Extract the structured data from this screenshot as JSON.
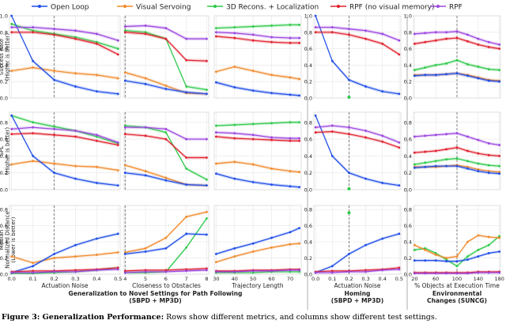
{
  "colors": {
    "open_loop": "#1f4ee8",
    "visual_servoing": "#f08a2c",
    "recons": "#2ec94a",
    "rpf_nomem": "#e0212e",
    "rpf": "#9b45e0",
    "grid": "#e6e6e6",
    "axis": "#444444"
  },
  "caption": {
    "label": "Figure 3: Generalization Performance:",
    "text": " Rows show different metrics, and columns show different test settings."
  },
  "chart_data": {
    "type": "line",
    "legend": {
      "placement": "top",
      "entries": [
        {
          "name": "Open Loop",
          "key": "open_loop"
        },
        {
          "name": "Visual Servoing",
          "key": "visual_servoing"
        },
        {
          "name": "3D Recons. + Localization",
          "key": "recons"
        },
        {
          "name": "RPF (no visual memory)",
          "key": "rpf_nomem"
        },
        {
          "name": "RPF",
          "key": "rpf"
        }
      ]
    },
    "row_labels": [
      [
        "Success Rate",
        "(Higher is better)"
      ],
      [
        "SPL",
        "(Higher is better)"
      ],
      [
        "Median",
        "Normalized Distance",
        "(Lower is better)"
      ]
    ],
    "y_ticks": [
      [
        "0.0",
        "0.2",
        "0.4",
        "0.6",
        "0.8",
        "1.0"
      ],
      [
        "0.0",
        "0.2",
        "0.4",
        "0.6",
        "0.8"
      ],
      [
        "0.0",
        "0.2",
        "0.4",
        "0.6",
        "0.8"
      ]
    ],
    "ylims": [
      [
        0,
        1.0
      ],
      [
        0,
        0.92
      ],
      [
        0,
        0.85
      ]
    ],
    "group_titles": [
      {
        "lines": [
          "Generalization to Novel Settings for Path Following",
          "(SBPD + MP3D)"
        ],
        "cols": [
          0,
          2
        ]
      },
      {
        "lines": [
          "Homing",
          "(SBPD + MP3D)"
        ],
        "cols": [
          3,
          3
        ]
      },
      {
        "lines": [
          "Environmental",
          "Changes (SUNCG)"
        ],
        "cols": [
          4,
          4
        ]
      }
    ],
    "columns": [
      {
        "xlabel": "Actuation Noise",
        "x": [
          0.0,
          0.1,
          0.2,
          0.3,
          0.4,
          0.5
        ],
        "xlim": [
          -0.01,
          0.51
        ],
        "xtick_labels": [
          "0.0",
          "0.1",
          "0.2",
          "0.3",
          "0.4",
          "0.5"
        ],
        "vline": 0.2,
        "rows": [
          {
            "open_loop": [
              1.0,
              0.45,
              0.22,
              0.14,
              0.08,
              0.05
            ],
            "visual_servoing": [
              0.33,
              0.37,
              0.33,
              0.3,
              0.28,
              0.24
            ],
            "recons": [
              0.9,
              0.82,
              0.78,
              0.74,
              0.68,
              0.6
            ],
            "rpf_nomem": [
              0.8,
              0.8,
              0.77,
              0.72,
              0.66,
              0.53
            ],
            "rpf": [
              0.86,
              0.86,
              0.84,
              0.82,
              0.78,
              0.7
            ]
          },
          {
            "open_loop": [
              0.88,
              0.4,
              0.2,
              0.13,
              0.08,
              0.05
            ],
            "visual_servoing": [
              0.3,
              0.34,
              0.31,
              0.28,
              0.27,
              0.23
            ],
            "recons": [
              0.88,
              0.8,
              0.75,
              0.7,
              0.63,
              0.55
            ],
            "rpf_nomem": [
              0.66,
              0.67,
              0.65,
              0.63,
              0.58,
              0.53
            ],
            "rpf": [
              0.72,
              0.74,
              0.72,
              0.7,
              0.65,
              0.56
            ]
          },
          {
            "open_loop": [
              0.02,
              0.1,
              0.25,
              0.36,
              0.44,
              0.5
            ],
            "visual_servoing": [
              0.22,
              0.14,
              0.2,
              0.22,
              0.24,
              0.27
            ],
            "recons": [
              0.01,
              0.01,
              0.02,
              0.03,
              0.05,
              0.08
            ],
            "rpf_nomem": [
              0.03,
              0.04,
              0.04,
              0.05,
              0.06,
              0.08
            ],
            "rpf": [
              0.02,
              0.02,
              0.03,
              0.03,
              0.05,
              0.06
            ]
          }
        ]
      },
      {
        "xlabel": "Closeness to Obstacles",
        "x": [
          4,
          5,
          6,
          7,
          8
        ],
        "xlim": [
          3.95,
          8.1
        ],
        "xtick_labels": [
          "4",
          "5",
          "6",
          "7",
          "8"
        ],
        "vline": 4,
        "rows": [
          {
            "open_loop": [
              0.21,
              0.17,
              0.11,
              0.07,
              0.05
            ],
            "visual_servoing": [
              0.31,
              0.24,
              0.15,
              0.06,
              0.05
            ],
            "recons": [
              0.82,
              0.8,
              0.72,
              0.14,
              0.1
            ],
            "rpf_nomem": [
              0.8,
              0.78,
              0.72,
              0.46,
              0.45
            ],
            "rpf": [
              0.87,
              0.88,
              0.85,
              0.72,
              0.72
            ]
          },
          {
            "open_loop": [
              0.2,
              0.17,
              0.11,
              0.06,
              0.05
            ],
            "visual_servoing": [
              0.29,
              0.22,
              0.14,
              0.06,
              0.05
            ],
            "recons": [
              0.76,
              0.74,
              0.68,
              0.25,
              0.12
            ],
            "rpf_nomem": [
              0.66,
              0.64,
              0.6,
              0.38,
              0.38
            ],
            "rpf": [
              0.74,
              0.74,
              0.72,
              0.6,
              0.6
            ]
          },
          {
            "open_loop": [
              0.25,
              0.28,
              0.32,
              0.5,
              0.49
            ],
            "visual_servoing": [
              0.27,
              0.32,
              0.45,
              0.71,
              0.77
            ],
            "recons": [
              0.02,
              0.02,
              0.03,
              0.33,
              0.69
            ],
            "rpf_nomem": [
              0.04,
              0.05,
              0.05,
              0.06,
              0.07
            ],
            "rpf": [
              0.02,
              0.03,
              0.03,
              0.04,
              0.05
            ]
          }
        ]
      },
      {
        "xlabel": "Trajectory Length",
        "x": [
          30,
          40,
          50,
          60,
          70,
          75
        ],
        "xlim": [
          29,
          76
        ],
        "xtick_labels": [
          "30",
          "40",
          "50",
          "60",
          "70"
        ],
        "xtick_values": [
          30,
          40,
          50,
          60,
          70
        ],
        "vline": null,
        "rows": [
          {
            "open_loop": [
              0.19,
              0.13,
              0.09,
              0.06,
              0.04,
              0.03
            ],
            "visual_servoing": [
              0.32,
              0.38,
              0.33,
              0.28,
              0.25,
              0.23
            ],
            "recons": [
              0.85,
              0.86,
              0.87,
              0.88,
              0.89,
              0.89
            ],
            "rpf_nomem": [
              0.75,
              0.73,
              0.7,
              0.68,
              0.67,
              0.67
            ],
            "rpf": [
              0.8,
              0.79,
              0.77,
              0.74,
              0.73,
              0.73
            ]
          },
          {
            "open_loop": [
              0.19,
              0.13,
              0.09,
              0.06,
              0.04,
              0.03
            ],
            "visual_servoing": [
              0.31,
              0.33,
              0.3,
              0.25,
              0.22,
              0.21
            ],
            "recons": [
              0.76,
              0.77,
              0.78,
              0.79,
              0.8,
              0.8
            ],
            "rpf_nomem": [
              0.63,
              0.61,
              0.6,
              0.59,
              0.58,
              0.58
            ],
            "rpf": [
              0.68,
              0.67,
              0.65,
              0.62,
              0.61,
              0.61
            ]
          },
          {
            "open_loop": [
              0.25,
              0.32,
              0.38,
              0.45,
              0.52,
              0.57
            ],
            "visual_servoing": [
              0.15,
              0.22,
              0.28,
              0.33,
              0.37,
              0.38
            ],
            "recons": [
              0.02,
              0.02,
              0.02,
              0.03,
              0.03,
              0.03
            ],
            "rpf_nomem": [
              0.04,
              0.04,
              0.05,
              0.05,
              0.06,
              0.06
            ],
            "rpf": [
              0.03,
              0.03,
              0.04,
              0.04,
              0.05,
              0.05
            ]
          }
        ]
      },
      {
        "xlabel": "Actuation Noise",
        "x": [
          0.0,
          0.1,
          0.2,
          0.3,
          0.4,
          0.5
        ],
        "xlim": [
          -0.01,
          0.51
        ],
        "xtick_labels": [
          "0.0",
          "0.1",
          "0.2",
          "0.3",
          "0.4",
          "0.5"
        ],
        "vline": 0.2,
        "rows": [
          {
            "open_loop": [
              1.0,
              0.45,
              0.22,
              0.14,
              0.08,
              0.05
            ],
            "rpf_nomem": [
              0.8,
              0.8,
              0.77,
              0.72,
              0.66,
              0.53
            ],
            "rpf": [
              0.86,
              0.86,
              0.84,
              0.82,
              0.78,
              0.7
            ],
            "points": [
              {
                "x": 0.2,
                "y": 0.01,
                "key": "recons"
              }
            ]
          },
          {
            "open_loop": [
              0.88,
              0.4,
              0.2,
              0.13,
              0.08,
              0.05
            ],
            "rpf_nomem": [
              0.68,
              0.69,
              0.66,
              0.62,
              0.57,
              0.5
            ],
            "rpf": [
              0.74,
              0.76,
              0.74,
              0.7,
              0.64,
              0.56
            ],
            "points": [
              {
                "x": 0.2,
                "y": 0.01,
                "key": "recons"
              }
            ]
          },
          {
            "open_loop": [
              0.02,
              0.1,
              0.25,
              0.36,
              0.44,
              0.5
            ],
            "rpf_nomem": [
              0.03,
              0.04,
              0.04,
              0.05,
              0.06,
              0.08
            ],
            "rpf": [
              0.02,
              0.02,
              0.03,
              0.03,
              0.05,
              0.06
            ],
            "points": [
              {
                "x": 0.2,
                "y": 0.76,
                "key": "recons"
              }
            ]
          }
        ]
      },
      {
        "xlabel": "% Objects at Execution Time",
        "x": [
          20,
          40,
          60,
          80,
          100,
          120,
          140,
          160,
          180
        ],
        "xlim": [
          18,
          182
        ],
        "xtick_labels": [
          "20",
          "60",
          "100",
          "140",
          "180"
        ],
        "xtick_values": [
          20,
          60,
          100,
          140,
          180
        ],
        "vline": 100,
        "rows": [
          {
            "open_loop": [
              0.27,
              0.28,
              0.28,
              0.29,
              0.3,
              0.27,
              0.24,
              0.21,
              0.2
            ],
            "visual_servoing": [
              0.28,
              0.28,
              0.28,
              0.29,
              0.3,
              0.28,
              0.25,
              0.22,
              0.21
            ],
            "recons": [
              0.34,
              0.37,
              0.4,
              0.42,
              0.46,
              0.41,
              0.38,
              0.35,
              0.34
            ],
            "rpf_nomem": [
              0.66,
              0.68,
              0.7,
              0.72,
              0.73,
              0.69,
              0.65,
              0.62,
              0.6
            ],
            "rpf": [
              0.78,
              0.79,
              0.8,
              0.8,
              0.81,
              0.77,
              0.72,
              0.68,
              0.65
            ]
          },
          {
            "open_loop": [
              0.26,
              0.27,
              0.28,
              0.28,
              0.28,
              0.25,
              0.22,
              0.2,
              0.19
            ],
            "visual_servoing": [
              0.27,
              0.27,
              0.27,
              0.28,
              0.29,
              0.27,
              0.24,
              0.22,
              0.21
            ],
            "recons": [
              0.3,
              0.32,
              0.34,
              0.36,
              0.37,
              0.34,
              0.31,
              0.29,
              0.28
            ],
            "rpf_nomem": [
              0.44,
              0.45,
              0.46,
              0.48,
              0.5,
              0.46,
              0.43,
              0.41,
              0.4
            ],
            "rpf": [
              0.63,
              0.64,
              0.65,
              0.66,
              0.67,
              0.63,
              0.59,
              0.55,
              0.53
            ]
          },
          {
            "open_loop": [
              0.17,
              0.17,
              0.17,
              0.16,
              0.16,
              0.18,
              0.22,
              0.26,
              0.28
            ],
            "visual_servoing": [
              0.36,
              0.3,
              0.24,
              0.2,
              0.22,
              0.4,
              0.48,
              0.46,
              0.45
            ],
            "recons": [
              0.3,
              0.32,
              0.26,
              0.18,
              0.1,
              0.22,
              0.3,
              0.36,
              0.47
            ],
            "rpf_nomem": [
              0.02,
              0.02,
              0.02,
              0.02,
              0.02,
              0.02,
              0.03,
              0.03,
              0.03
            ],
            "rpf": [
              0.01,
              0.01,
              0.01,
              0.01,
              0.01,
              0.01,
              0.02,
              0.02,
              0.02
            ]
          }
        ]
      }
    ]
  }
}
